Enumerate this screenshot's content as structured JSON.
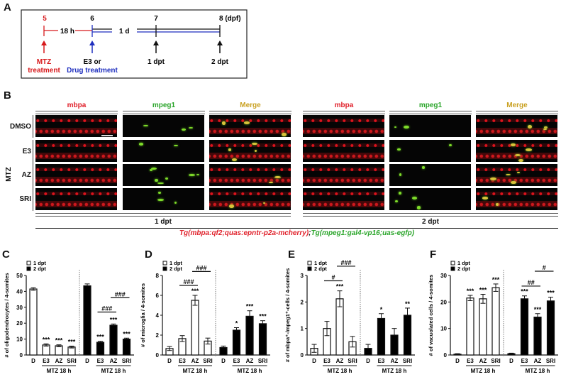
{
  "panel_labels": {
    "a": "A",
    "b": "B",
    "c": "C",
    "d": "D",
    "e": "E",
    "f": "F"
  },
  "timeline": {
    "day5": "5",
    "day6": "6",
    "day7": "7",
    "day8": "8 (dpf)",
    "interval1": "18 h",
    "interval2": "1 d",
    "mtz_line1": "MTZ",
    "mtz_line2": "treatment",
    "e3_line1": "E3 or",
    "drug_line2": "Drug treatment",
    "dpt1": "1 dpt",
    "dpt2": "2 dpt",
    "colors": {
      "mtz": "#d7191c",
      "drug": "#1f2fbf",
      "neutral": "#111111"
    }
  },
  "imaging": {
    "columns": [
      "mbpa",
      "mpeg1",
      "Merge",
      "mbpa",
      "mpeg1",
      "Merge"
    ],
    "column_colors": [
      "#e0202a",
      "#2aa52a",
      "#c9a020",
      "#e0202a",
      "#2aa52a",
      "#c9a020"
    ],
    "rows": [
      "DMSO",
      "E3",
      "AZ",
      "SRI"
    ],
    "group_label": "MTZ",
    "timepoints": [
      "1 dpt",
      "2 dpt"
    ],
    "genotype_red": "Tg(mbpa:qf2;quas:epntr-p2a-mcherry)",
    "genotype_sep": ";",
    "genotype_green": "Tg(mpeg1:gal4-vp16;uas-egfp)"
  },
  "chart_data": [
    {
      "id": "C",
      "type": "bar",
      "ylabel": "# of oligodendrocytes / 4-somites",
      "ylim": [
        0,
        50
      ],
      "yticks": [
        0,
        10,
        20,
        30,
        40,
        50
      ],
      "categories": [
        "D",
        "E3",
        "AZ",
        "SRI"
      ],
      "group_label": "MTZ 18 h",
      "legend": [
        "1 dpt",
        "2 dpt"
      ],
      "legend_position": "top-left",
      "series": [
        {
          "name": "1 dpt",
          "values": [
            41.5,
            6.3,
            5.8,
            5.0
          ],
          "errors": [
            0.8,
            0.7,
            0.6,
            0.6
          ],
          "sig": [
            "",
            "***",
            "***",
            "***"
          ]
        },
        {
          "name": "2 dpt",
          "values": [
            43.5,
            8.0,
            18.7,
            10.0
          ],
          "errors": [
            1.2,
            0.6,
            0.8,
            0.6
          ],
          "sig": [
            "",
            "***",
            "***",
            "***"
          ]
        }
      ],
      "brackets": [
        {
          "series": 1,
          "from": 1,
          "to": 2,
          "y": 27,
          "label": "###"
        },
        {
          "series": 1,
          "from": 2,
          "to": 3,
          "y": 36,
          "label": "###"
        }
      ]
    },
    {
      "id": "D",
      "type": "bar",
      "ylabel": "# of microglia / 4-somites",
      "ylim": [
        0,
        8
      ],
      "yticks": [
        0,
        2,
        4,
        6,
        8
      ],
      "categories": [
        "D",
        "E3",
        "AZ",
        "SRI"
      ],
      "group_label": "MTZ 18 h",
      "legend": [
        "1 dpt",
        "2 dpt"
      ],
      "legend_position": "top-left",
      "series": [
        {
          "name": "1 dpt",
          "values": [
            0.65,
            1.65,
            5.5,
            1.4
          ],
          "errors": [
            0.2,
            0.3,
            0.5,
            0.3
          ],
          "sig": [
            "",
            "",
            "***",
            ""
          ]
        },
        {
          "name": "2 dpt",
          "values": [
            0.75,
            2.5,
            3.9,
            3.15
          ],
          "errors": [
            0.15,
            0.25,
            0.55,
            0.3
          ],
          "sig": [
            "",
            "*",
            "***",
            "***"
          ]
        }
      ],
      "brackets": [
        {
          "series": 0,
          "from": 1,
          "to": 2,
          "y": 7.0,
          "label": "###"
        },
        {
          "series": 0,
          "from": 2,
          "to": 3,
          "y": 8.4,
          "label": "###"
        }
      ]
    },
    {
      "id": "E",
      "type": "bar",
      "ylabel": "# of mbpa⁺-/mpeg1⁺-cells / 4-somites",
      "ylim": [
        0,
        3
      ],
      "yticks": [
        0,
        1,
        2,
        3
      ],
      "categories": [
        "D",
        "E3",
        "AZ",
        "SRI"
      ],
      "group_label": "MTZ 18 h",
      "legend": [
        "1 dpt",
        "2 dpt"
      ],
      "legend_position": "top-left",
      "series": [
        {
          "name": "1 dpt",
          "values": [
            0.25,
            1.0,
            2.12,
            0.5
          ],
          "errors": [
            0.15,
            0.27,
            0.3,
            0.2
          ],
          "sig": [
            "",
            "",
            "***",
            ""
          ]
        },
        {
          "name": "2 dpt",
          "values": [
            0.25,
            1.38,
            0.75,
            1.5
          ],
          "errors": [
            0.15,
            0.18,
            0.25,
            0.27
          ],
          "sig": [
            "",
            "*",
            "",
            "**"
          ]
        }
      ],
      "brackets": [
        {
          "series": 0,
          "from": 1,
          "to": 2,
          "y": 2.8,
          "label": "#"
        },
        {
          "series": 0,
          "from": 2,
          "to": 3,
          "y": 3.35,
          "label": "###"
        }
      ]
    },
    {
      "id": "F",
      "type": "bar",
      "ylabel": "# of vacuolated cells / 4-somites",
      "ylim": [
        0,
        30
      ],
      "yticks": [
        0,
        10,
        20,
        30
      ],
      "categories": [
        "D",
        "E3",
        "AZ",
        "SRI"
      ],
      "group_label": "MTZ 18 h",
      "legend": [
        "1 dpt",
        "2 dpt"
      ],
      "legend_position": "top-left",
      "series": [
        {
          "name": "1 dpt",
          "values": [
            0.3,
            21.5,
            21.2,
            25.4
          ],
          "errors": [
            0.2,
            1.0,
            1.7,
            1.4
          ],
          "sig": [
            "",
            "***",
            "***",
            "***"
          ]
        },
        {
          "name": "2 dpt",
          "values": [
            0.5,
            21.2,
            14.3,
            20.4
          ],
          "errors": [
            0.2,
            1.1,
            1.3,
            1.4
          ],
          "sig": [
            "",
            "***",
            "***",
            "***"
          ]
        }
      ],
      "brackets": [
        {
          "series": 1,
          "from": 1,
          "to": 2,
          "y": 26,
          "label": "##"
        },
        {
          "series": 1,
          "from": 2,
          "to": 3,
          "y": 31.6,
          "label": "#"
        }
      ]
    }
  ]
}
